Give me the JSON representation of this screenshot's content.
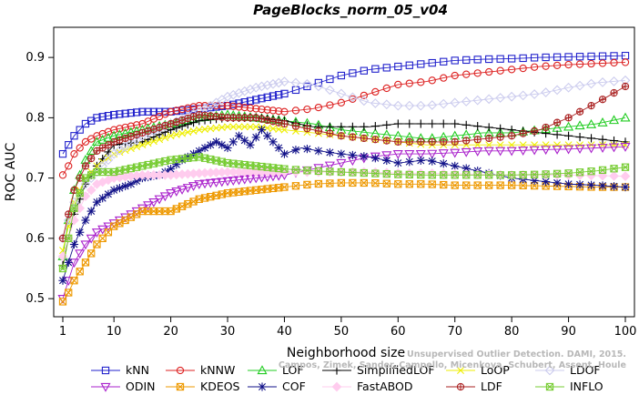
{
  "chart_data": {
    "type": "line",
    "title": "PageBlocks_norm_05_v04",
    "xlabel": "Neighborhood size",
    "ylabel": "ROC AUC",
    "xlim": [
      1,
      100
    ],
    "ylim": [
      0.47,
      0.95
    ],
    "xticks": [
      1,
      10,
      20,
      30,
      40,
      50,
      60,
      70,
      80,
      90,
      100
    ],
    "yticks": [
      0.5,
      0.6,
      0.7,
      0.8,
      0.9
    ],
    "grid": false,
    "legend_position": "bottom",
    "series": [
      {
        "name": "kNN",
        "color": "#2222cc",
        "marker": "square",
        "x": [
          1,
          2,
          3,
          5,
          7,
          10,
          15,
          20,
          25,
          30,
          35,
          40,
          45,
          50,
          55,
          60,
          65,
          70,
          75,
          80,
          85,
          90,
          95,
          100
        ],
        "y": [
          0.74,
          0.755,
          0.77,
          0.79,
          0.8,
          0.805,
          0.81,
          0.81,
          0.815,
          0.82,
          0.83,
          0.84,
          0.855,
          0.87,
          0.88,
          0.885,
          0.89,
          0.895,
          0.897,
          0.898,
          0.9,
          0.901,
          0.902,
          0.903
        ]
      },
      {
        "name": "kNNW",
        "color": "#dd2222",
        "marker": "circle",
        "x": [
          1,
          2,
          3,
          5,
          7,
          10,
          15,
          20,
          25,
          30,
          35,
          40,
          45,
          50,
          55,
          60,
          65,
          70,
          75,
          80,
          85,
          90,
          95,
          100
        ],
        "y": [
          0.705,
          0.72,
          0.74,
          0.76,
          0.77,
          0.78,
          0.79,
          0.81,
          0.82,
          0.82,
          0.815,
          0.81,
          0.815,
          0.825,
          0.84,
          0.855,
          0.86,
          0.87,
          0.875,
          0.88,
          0.885,
          0.888,
          0.89,
          0.892
        ]
      },
      {
        "name": "LOF",
        "color": "#22cc22",
        "marker": "triangle-up",
        "x": [
          1,
          2,
          3,
          5,
          7,
          10,
          15,
          20,
          25,
          30,
          35,
          40,
          45,
          50,
          55,
          60,
          65,
          70,
          75,
          80,
          85,
          90,
          95,
          100
        ],
        "y": [
          0.57,
          0.63,
          0.68,
          0.73,
          0.76,
          0.77,
          0.78,
          0.79,
          0.8,
          0.805,
          0.8,
          0.795,
          0.79,
          0.78,
          0.775,
          0.77,
          0.765,
          0.77,
          0.775,
          0.775,
          0.78,
          0.785,
          0.79,
          0.8
        ]
      },
      {
        "name": "SimplifiedLOF",
        "color": "#000000",
        "marker": "plus",
        "x": [
          1,
          2,
          3,
          5,
          7,
          10,
          15,
          20,
          25,
          30,
          35,
          40,
          45,
          50,
          55,
          60,
          65,
          70,
          75,
          80,
          85,
          90,
          95,
          100
        ],
        "y": [
          0.555,
          0.6,
          0.64,
          0.69,
          0.72,
          0.755,
          0.76,
          0.78,
          0.795,
          0.8,
          0.8,
          0.795,
          0.785,
          0.785,
          0.785,
          0.79,
          0.79,
          0.79,
          0.785,
          0.78,
          0.775,
          0.77,
          0.765,
          0.76
        ]
      },
      {
        "name": "LoOP",
        "color": "#eeee00",
        "marker": "x",
        "x": [
          1,
          2,
          3,
          5,
          7,
          10,
          15,
          20,
          25,
          30,
          35,
          40,
          45,
          50,
          55,
          60,
          65,
          70,
          75,
          80,
          85,
          90,
          95,
          100
        ],
        "y": [
          0.58,
          0.62,
          0.66,
          0.7,
          0.72,
          0.74,
          0.755,
          0.77,
          0.78,
          0.785,
          0.785,
          0.78,
          0.775,
          0.77,
          0.765,
          0.76,
          0.755,
          0.755,
          0.755,
          0.755,
          0.755,
          0.755,
          0.755,
          0.755
        ]
      },
      {
        "name": "LDOF",
        "color": "#ccccee",
        "marker": "diamond",
        "x": [
          1,
          2,
          3,
          5,
          7,
          10,
          15,
          20,
          25,
          30,
          35,
          40,
          45,
          50,
          55,
          60,
          65,
          70,
          75,
          80,
          85,
          90,
          95,
          100
        ],
        "y": [
          0.6,
          0.63,
          0.66,
          0.69,
          0.71,
          0.74,
          0.77,
          0.79,
          0.81,
          0.835,
          0.85,
          0.86,
          0.855,
          0.84,
          0.825,
          0.82,
          0.82,
          0.825,
          0.83,
          0.835,
          0.84,
          0.85,
          0.858,
          0.862
        ]
      },
      {
        "name": "ODIN",
        "color": "#aa22cc",
        "marker": "triangle-down",
        "x": [
          1,
          2,
          3,
          5,
          7,
          10,
          15,
          20,
          25,
          30,
          35,
          40,
          45,
          50,
          55,
          60,
          65,
          70,
          75,
          80,
          85,
          90,
          95,
          100
        ],
        "y": [
          0.5,
          0.53,
          0.56,
          0.59,
          0.61,
          0.625,
          0.65,
          0.675,
          0.69,
          0.695,
          0.7,
          0.705,
          0.715,
          0.725,
          0.735,
          0.74,
          0.74,
          0.742,
          0.745,
          0.745,
          0.747,
          0.748,
          0.75,
          0.752
        ]
      },
      {
        "name": "KDEOS",
        "color": "#ee9900",
        "marker": "square-x",
        "x": [
          1,
          2,
          3,
          5,
          7,
          10,
          15,
          20,
          25,
          30,
          35,
          40,
          45,
          50,
          55,
          60,
          65,
          70,
          75,
          80,
          85,
          90,
          95,
          100
        ],
        "y": [
          0.495,
          0.51,
          0.53,
          0.56,
          0.59,
          0.62,
          0.645,
          0.645,
          0.665,
          0.675,
          0.68,
          0.685,
          0.69,
          0.692,
          0.692,
          0.69,
          0.69,
          0.688,
          0.688,
          0.688,
          0.687,
          0.686,
          0.685,
          0.685
        ]
      },
      {
        "name": "COF",
        "color": "#111188",
        "marker": "asterisk",
        "x": [
          1,
          2,
          3,
          5,
          7,
          10,
          13,
          15,
          18,
          20,
          22,
          25,
          28,
          30,
          32,
          34,
          36,
          38,
          40,
          43,
          46,
          50,
          55,
          60,
          65,
          70,
          75,
          80,
          85,
          90,
          95,
          100
        ],
        "y": [
          0.53,
          0.56,
          0.59,
          0.63,
          0.66,
          0.68,
          0.69,
          0.7,
          0.705,
          0.715,
          0.73,
          0.745,
          0.76,
          0.75,
          0.77,
          0.755,
          0.78,
          0.76,
          0.74,
          0.75,
          0.745,
          0.74,
          0.735,
          0.725,
          0.73,
          0.72,
          0.71,
          0.7,
          0.695,
          0.69,
          0.688,
          0.685
        ]
      },
      {
        "name": "FastABOD",
        "color": "#ffccee",
        "marker": "diamond-filled",
        "x": [
          1,
          2,
          3,
          5,
          7,
          10,
          15,
          20,
          25,
          30,
          35,
          40,
          45,
          50,
          55,
          60,
          65,
          70,
          75,
          80,
          85,
          90,
          95,
          100
        ],
        "y": [
          0.57,
          0.6,
          0.63,
          0.67,
          0.69,
          0.7,
          0.705,
          0.705,
          0.708,
          0.71,
          0.71,
          0.71,
          0.71,
          0.71,
          0.71,
          0.708,
          0.708,
          0.707,
          0.706,
          0.705,
          0.705,
          0.705,
          0.704,
          0.703
        ]
      },
      {
        "name": "LDF",
        "color": "#aa2222",
        "marker": "circle-plus",
        "x": [
          1,
          2,
          3,
          5,
          7,
          10,
          15,
          20,
          25,
          30,
          35,
          40,
          45,
          50,
          55,
          60,
          65,
          70,
          75,
          80,
          85,
          90,
          95,
          100
        ],
        "y": [
          0.6,
          0.64,
          0.68,
          0.72,
          0.745,
          0.76,
          0.775,
          0.79,
          0.805,
          0.8,
          0.8,
          0.79,
          0.78,
          0.77,
          0.765,
          0.76,
          0.76,
          0.76,
          0.765,
          0.77,
          0.78,
          0.8,
          0.825,
          0.852
        ]
      },
      {
        "name": "INFLO",
        "color": "#77cc33",
        "marker": "square-cross",
        "x": [
          1,
          2,
          3,
          5,
          7,
          10,
          15,
          20,
          25,
          30,
          35,
          40,
          45,
          50,
          55,
          60,
          65,
          70,
          75,
          80,
          85,
          90,
          95,
          100
        ],
        "y": [
          0.55,
          0.6,
          0.65,
          0.7,
          0.71,
          0.71,
          0.72,
          0.73,
          0.735,
          0.725,
          0.72,
          0.715,
          0.712,
          0.71,
          0.708,
          0.706,
          0.705,
          0.705,
          0.705,
          0.705,
          0.706,
          0.708,
          0.712,
          0.718
        ]
      }
    ],
    "legend_rows": [
      [
        "kNN",
        "kNNW",
        "LOF",
        "SimplifiedLOF",
        "LoOP",
        "LDOF"
      ],
      [
        "ODIN",
        "KDEOS",
        "COF",
        "FastABOD",
        "LDF",
        "INFLO"
      ]
    ],
    "watermark_lines": [
      "Unsupervised Outlier Detection. DAMI, 2015.",
      "Campos, Zimek, Sander, Campello, Micenkova, Schubert, Assent, Houle"
    ]
  }
}
